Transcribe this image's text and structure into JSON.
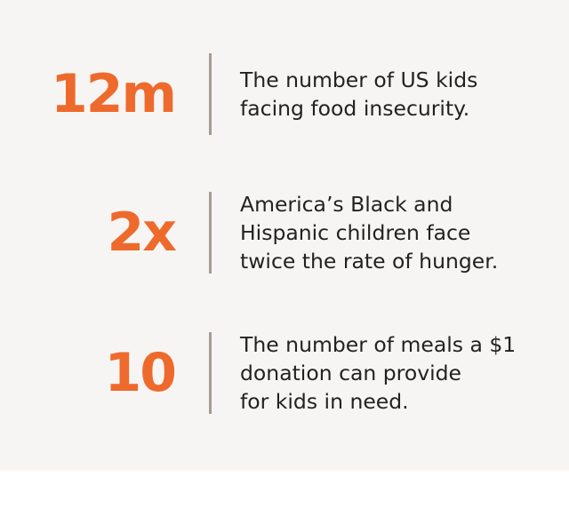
{
  "stats": [
    {
      "value": "12m",
      "description_lines": [
        "The number of US kids",
        "facing food insecurity."
      ]
    },
    {
      "value": "2x",
      "description_lines": [
        "America’s Black and",
        "Hispanic children face",
        "twice the rate of hunger."
      ]
    },
    {
      "value": "10",
      "description_lines": [
        "The number of meals a $1",
        "donation can provide",
        "for kids in need."
      ]
    }
  ],
  "colors": {
    "accent": "#ee6a2c",
    "text": "#222222",
    "divider": "#a39c95",
    "panel_background": "#f7f5f3"
  }
}
